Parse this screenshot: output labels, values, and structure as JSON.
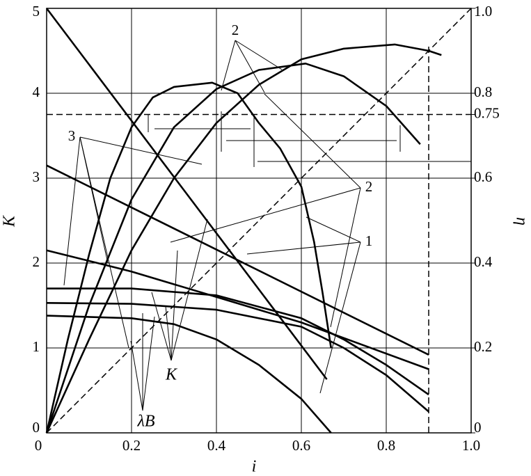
{
  "chart_data": {
    "type": "line",
    "xlabel": "i",
    "ylabel": "K",
    "y2label": "η",
    "xlim": [
      0,
      1
    ],
    "xticks": [
      0,
      0.2,
      0.4,
      0.6,
      0.8,
      {
        "value": 1,
        "label": "1.0"
      }
    ],
    "ylim": [
      0,
      5
    ],
    "yticks": [
      0,
      1,
      2,
      3,
      4,
      5
    ],
    "y2lim": [
      0,
      1
    ],
    "y2ticks": [
      0,
      0.2,
      0.4,
      0.6,
      0.75,
      0.8,
      {
        "value": 1,
        "label": "1.0"
      }
    ],
    "grid": true,
    "hlines_y2": [
      0.75
    ],
    "vlines": [
      0.9
    ],
    "diagonal_y2": true,
    "series": [
      {
        "color": "#000",
        "x": [
          0,
          0.66
        ],
        "values": [
          5,
          0.63
        ]
      },
      {
        "color": "#000",
        "x": [
          0,
          0.9
        ],
        "values": [
          3.15,
          0.92
        ]
      },
      {
        "color": "#000",
        "x": [
          0,
          0.2,
          0.4,
          0.6,
          0.9
        ],
        "values": [
          2.15,
          1.9,
          1.6,
          1.3,
          0.75
        ]
      },
      {
        "color": "#000",
        "x": [
          0,
          0.2,
          0.4,
          0.6,
          0.7,
          0.8,
          0.9
        ],
        "values": [
          1.7,
          1.7,
          1.62,
          1.35,
          1.1,
          0.8,
          0.45
        ]
      },
      {
        "color": "#000",
        "x": [
          0,
          0.2,
          0.4,
          0.6,
          0.7,
          0.8,
          0.9
        ],
        "values": [
          1.53,
          1.52,
          1.45,
          1.25,
          1.0,
          0.68,
          0.25
        ]
      },
      {
        "color": "#000",
        "x": [
          0,
          0.2,
          0.3,
          0.4,
          0.5,
          0.6,
          0.67
        ],
        "values": [
          1.38,
          1.35,
          1.28,
          1.1,
          0.8,
          0.4,
          0
        ]
      },
      {
        "color": "#000",
        "axis": "y2",
        "x": [
          0,
          0.05,
          0.1,
          0.15,
          0.2,
          0.25,
          0.3,
          0.39,
          0.45,
          0.5,
          0.55,
          0.6,
          0.63,
          0.65,
          0.67
        ],
        "values": [
          0,
          0.22,
          0.42,
          0.6,
          0.72,
          0.79,
          0.815,
          0.825,
          0.8,
          0.73,
          0.67,
          0.58,
          0.45,
          0.33,
          0.2
        ]
      },
      {
        "color": "#000",
        "axis": "y2",
        "x": [
          0,
          0.1,
          0.2,
          0.3,
          0.4,
          0.5,
          0.61,
          0.7,
          0.8,
          0.88
        ],
        "values": [
          0,
          0.3,
          0.55,
          0.72,
          0.81,
          0.855,
          0.87,
          0.84,
          0.77,
          0.68
        ]
      },
      {
        "color": "#000",
        "axis": "y2",
        "x": [
          0,
          0.1,
          0.2,
          0.3,
          0.4,
          0.5,
          0.6,
          0.7,
          0.82,
          0.9,
          0.93
        ],
        "values": [
          0,
          0.22,
          0.43,
          0.6,
          0.73,
          0.82,
          0.88,
          0.905,
          0.915,
          0.9,
          0.89
        ]
      }
    ],
    "annotations": [
      "2",
      "3",
      "2",
      "1",
      "K",
      "λB"
    ]
  }
}
